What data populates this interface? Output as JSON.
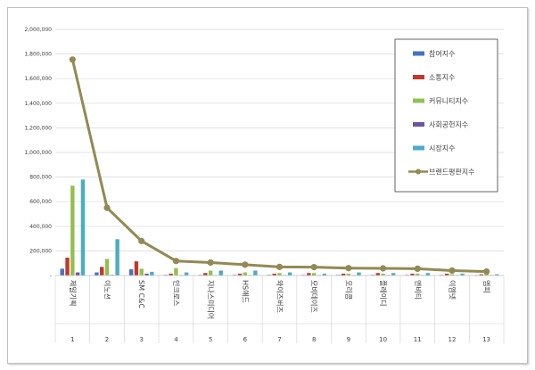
{
  "chart_data": {
    "type": "bar",
    "title": "",
    "xlabel": "",
    "ylabel": "",
    "ylim": [
      0,
      2000000
    ],
    "yticks": [
      0,
      200000,
      400000,
      600000,
      800000,
      1000000,
      1200000,
      1400000,
      1600000,
      1800000,
      2000000
    ],
    "ytick_labels": [
      "-",
      "200,000",
      "400,000",
      "600,000",
      "800,000",
      "1,000,000",
      "1,200,000",
      "1,400,000",
      "1,600,000",
      "1,800,000",
      "2,000,000"
    ],
    "grid": true,
    "legend_position": "top-right",
    "categories": [
      "제일기획",
      "이노션",
      "SM C&C",
      "인크로스",
      "지나스미디어",
      "HS애드",
      "와이즈버즈",
      "모비데이즈",
      "오리콤",
      "플레이디",
      "엔비티",
      "이엠넷",
      "엠피"
    ],
    "category_numbers": [
      "1",
      "2",
      "3",
      "4",
      "5",
      "6",
      "7",
      "8",
      "9",
      "10",
      "11",
      "12",
      "13"
    ],
    "series": [
      {
        "name": "참여지수",
        "color": "#4472c4",
        "values": [
          55000,
          25000,
          50000,
          5000,
          5000,
          5000,
          5000,
          5000,
          5000,
          5000,
          5000,
          5000,
          3000
        ]
      },
      {
        "name": "소통지수",
        "color": "#c0392b",
        "values": [
          145000,
          70000,
          115000,
          15000,
          20000,
          15000,
          15000,
          20000,
          15000,
          20000,
          15000,
          15000,
          10000
        ]
      },
      {
        "name": "커뮤니티지수",
        "color": "#92c050",
        "values": [
          730000,
          135000,
          55000,
          60000,
          40000,
          25000,
          20000,
          20000,
          15000,
          15000,
          15000,
          10000,
          10000
        ]
      },
      {
        "name": "사회공헌지수",
        "color": "#7052a0",
        "values": [
          25000,
          5000,
          15000,
          3000,
          3000,
          3000,
          3000,
          3000,
          3000,
          3000,
          3000,
          3000,
          3000
        ]
      },
      {
        "name": "시장지수",
        "color": "#4bacc6",
        "values": [
          780000,
          295000,
          30000,
          25000,
          40000,
          40000,
          25000,
          15000,
          25000,
          20000,
          20000,
          15000,
          10000
        ]
      },
      {
        "name": "브랜드평판지수",
        "color": "#938953",
        "type": "line",
        "values": [
          1755000,
          550000,
          280000,
          118000,
          105000,
          88000,
          70000,
          68000,
          60000,
          58000,
          55000,
          40000,
          32000
        ]
      }
    ]
  }
}
